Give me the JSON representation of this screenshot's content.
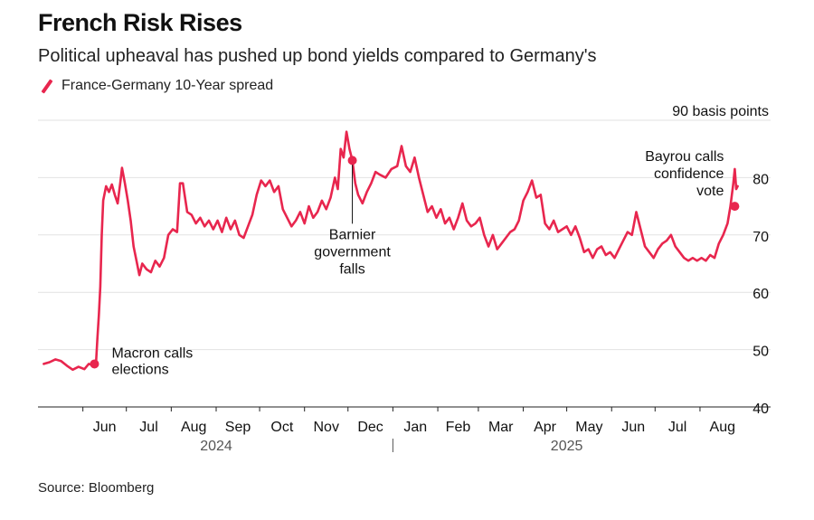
{
  "title": "French Risk Rises",
  "subtitle": "Political upheaval has pushed up bond yields compared to Germany's",
  "legend_label": "France-Germany 10-Year spread",
  "source": "Source: Bloomberg",
  "colors": {
    "series": "#e8264e",
    "grid": "#e2e2e2",
    "axis": "#222222"
  },
  "chart_data": {
    "type": "line",
    "title": "French Risk Rises",
    "subtitle": "Political upheaval has pushed up bond yields compared to Germany's",
    "unit_label": "90 basis points",
    "ylim": [
      40,
      90
    ],
    "yticks": [
      40,
      50,
      60,
      70,
      80
    ],
    "grid": "horizontal",
    "y_axis_side": "right",
    "xlim": [
      "2024-05-01",
      "2025-08-31"
    ],
    "month_ticks": [
      {
        "label": "Jun",
        "date": "2024-06-01"
      },
      {
        "label": "Jul",
        "date": "2024-07-01"
      },
      {
        "label": "Aug",
        "date": "2024-08-01"
      },
      {
        "label": "Sep",
        "date": "2024-09-01"
      },
      {
        "label": "Oct",
        "date": "2024-10-01"
      },
      {
        "label": "Nov",
        "date": "2024-11-01"
      },
      {
        "label": "Dec",
        "date": "2024-12-01"
      },
      {
        "label": "Jan",
        "date": "2025-01-01"
      },
      {
        "label": "Feb",
        "date": "2025-02-01"
      },
      {
        "label": "Mar",
        "date": "2025-03-01"
      },
      {
        "label": "Apr",
        "date": "2025-04-01"
      },
      {
        "label": "May",
        "date": "2025-05-01"
      },
      {
        "label": "Jun",
        "date": "2025-06-01"
      },
      {
        "label": "Jul",
        "date": "2025-07-01"
      },
      {
        "label": "Aug",
        "date": "2025-08-01"
      }
    ],
    "years": [
      {
        "label": "2024",
        "date": "2024-09-01"
      },
      {
        "label": "2025",
        "date": "2025-05-01"
      }
    ],
    "year_divider": "2025-01-01",
    "series": [
      {
        "name": "France-Germany 10-Year spread",
        "points": [
          [
            "2024-05-05",
            47.5
          ],
          [
            "2024-05-09",
            47.8
          ],
          [
            "2024-05-13",
            48.3
          ],
          [
            "2024-05-17",
            48.0
          ],
          [
            "2024-05-21",
            47.2
          ],
          [
            "2024-05-25",
            46.5
          ],
          [
            "2024-05-29",
            47.0
          ],
          [
            "2024-06-02",
            46.6
          ],
          [
            "2024-06-05",
            47.5
          ],
          [
            "2024-06-08",
            47.3
          ],
          [
            "2024-06-10",
            47.5
          ],
          [
            "2024-06-11",
            52.0
          ],
          [
            "2024-06-12",
            56.0
          ],
          [
            "2024-06-13",
            61.0
          ],
          [
            "2024-06-14",
            70.0
          ],
          [
            "2024-06-15",
            76.0
          ],
          [
            "2024-06-17",
            78.5
          ],
          [
            "2024-06-19",
            77.5
          ],
          [
            "2024-06-21",
            78.8
          ],
          [
            "2024-06-23",
            77.0
          ],
          [
            "2024-06-25",
            75.5
          ],
          [
            "2024-06-27",
            79.5
          ],
          [
            "2024-06-28",
            81.7
          ],
          [
            "2024-06-30",
            79.0
          ],
          [
            "2024-07-02",
            76.0
          ],
          [
            "2024-07-04",
            72.5
          ],
          [
            "2024-07-06",
            68.0
          ],
          [
            "2024-07-08",
            65.5
          ],
          [
            "2024-07-10",
            63.0
          ],
          [
            "2024-07-12",
            65.0
          ],
          [
            "2024-07-15",
            64.0
          ],
          [
            "2024-07-18",
            63.5
          ],
          [
            "2024-07-21",
            65.5
          ],
          [
            "2024-07-24",
            64.5
          ],
          [
            "2024-07-27",
            66.0
          ],
          [
            "2024-07-30",
            70.0
          ],
          [
            "2024-08-02",
            71.0
          ],
          [
            "2024-08-05",
            70.5
          ],
          [
            "2024-08-07",
            79.0
          ],
          [
            "2024-08-09",
            79.0
          ],
          [
            "2024-08-12",
            74.0
          ],
          [
            "2024-08-15",
            73.5
          ],
          [
            "2024-08-18",
            72.0
          ],
          [
            "2024-08-21",
            73.0
          ],
          [
            "2024-08-24",
            71.5
          ],
          [
            "2024-08-27",
            72.5
          ],
          [
            "2024-08-30",
            71.0
          ],
          [
            "2024-09-02",
            72.5
          ],
          [
            "2024-09-05",
            70.5
          ],
          [
            "2024-09-08",
            73.0
          ],
          [
            "2024-09-11",
            71.0
          ],
          [
            "2024-09-14",
            72.5
          ],
          [
            "2024-09-17",
            70.0
          ],
          [
            "2024-09-20",
            69.5
          ],
          [
            "2024-09-23",
            71.5
          ],
          [
            "2024-09-26",
            73.5
          ],
          [
            "2024-09-29",
            77.0
          ],
          [
            "2024-10-02",
            79.5
          ],
          [
            "2024-10-05",
            78.5
          ],
          [
            "2024-10-08",
            79.5
          ],
          [
            "2024-10-11",
            77.5
          ],
          [
            "2024-10-14",
            78.5
          ],
          [
            "2024-10-17",
            74.5
          ],
          [
            "2024-10-20",
            73.0
          ],
          [
            "2024-10-23",
            71.5
          ],
          [
            "2024-10-26",
            72.5
          ],
          [
            "2024-10-29",
            74.0
          ],
          [
            "2024-11-01",
            72.0
          ],
          [
            "2024-11-04",
            75.0
          ],
          [
            "2024-11-07",
            73.0
          ],
          [
            "2024-11-10",
            74.0
          ],
          [
            "2024-11-13",
            76.0
          ],
          [
            "2024-11-16",
            74.5
          ],
          [
            "2024-11-19",
            76.5
          ],
          [
            "2024-11-22",
            80.0
          ],
          [
            "2024-11-24",
            78.0
          ],
          [
            "2024-11-26",
            85.0
          ],
          [
            "2024-11-28",
            83.5
          ],
          [
            "2024-11-30",
            88.0
          ],
          [
            "2024-12-02",
            85.0
          ],
          [
            "2024-12-04",
            83.0
          ],
          [
            "2024-12-06",
            79.0
          ],
          [
            "2024-12-08",
            77.0
          ],
          [
            "2024-12-11",
            75.5
          ],
          [
            "2024-12-14",
            77.5
          ],
          [
            "2024-12-17",
            79.0
          ],
          [
            "2024-12-20",
            81.0
          ],
          [
            "2024-12-23",
            80.5
          ],
          [
            "2024-12-27",
            80.0
          ],
          [
            "2024-12-31",
            81.5
          ],
          [
            "2025-01-04",
            82.0
          ],
          [
            "2025-01-07",
            85.5
          ],
          [
            "2025-01-10",
            82.0
          ],
          [
            "2025-01-13",
            81.0
          ],
          [
            "2025-01-16",
            83.5
          ],
          [
            "2025-01-19",
            80.0
          ],
          [
            "2025-01-22",
            77.0
          ],
          [
            "2025-01-25",
            74.0
          ],
          [
            "2025-01-28",
            75.0
          ],
          [
            "2025-01-31",
            73.0
          ],
          [
            "2025-02-03",
            74.5
          ],
          [
            "2025-02-06",
            72.0
          ],
          [
            "2025-02-09",
            73.0
          ],
          [
            "2025-02-12",
            71.0
          ],
          [
            "2025-02-15",
            73.0
          ],
          [
            "2025-02-18",
            75.5
          ],
          [
            "2025-02-21",
            72.5
          ],
          [
            "2025-02-24",
            71.5
          ],
          [
            "2025-02-27",
            72.0
          ],
          [
            "2025-03-02",
            73.0
          ],
          [
            "2025-03-05",
            70.0
          ],
          [
            "2025-03-08",
            68.0
          ],
          [
            "2025-03-11",
            70.0
          ],
          [
            "2025-03-14",
            67.5
          ],
          [
            "2025-03-17",
            68.5
          ],
          [
            "2025-03-20",
            69.5
          ],
          [
            "2025-03-23",
            70.5
          ],
          [
            "2025-03-26",
            71.0
          ],
          [
            "2025-03-29",
            72.5
          ],
          [
            "2025-04-01",
            76.0
          ],
          [
            "2025-04-04",
            77.5
          ],
          [
            "2025-04-07",
            79.5
          ],
          [
            "2025-04-10",
            76.5
          ],
          [
            "2025-04-13",
            77.0
          ],
          [
            "2025-04-16",
            72.0
          ],
          [
            "2025-04-19",
            71.0
          ],
          [
            "2025-04-22",
            72.5
          ],
          [
            "2025-04-25",
            70.5
          ],
          [
            "2025-04-28",
            71.0
          ],
          [
            "2025-05-01",
            71.5
          ],
          [
            "2025-05-04",
            70.0
          ],
          [
            "2025-05-07",
            71.5
          ],
          [
            "2025-05-10",
            69.5
          ],
          [
            "2025-05-13",
            67.0
          ],
          [
            "2025-05-16",
            67.5
          ],
          [
            "2025-05-19",
            66.0
          ],
          [
            "2025-05-22",
            67.5
          ],
          [
            "2025-05-25",
            68.0
          ],
          [
            "2025-05-28",
            66.5
          ],
          [
            "2025-05-31",
            67.0
          ],
          [
            "2025-06-03",
            66.0
          ],
          [
            "2025-06-06",
            67.5
          ],
          [
            "2025-06-09",
            69.0
          ],
          [
            "2025-06-12",
            70.5
          ],
          [
            "2025-06-15",
            70.0
          ],
          [
            "2025-06-18",
            74.0
          ],
          [
            "2025-06-21",
            71.0
          ],
          [
            "2025-06-24",
            68.0
          ],
          [
            "2025-06-27",
            67.0
          ],
          [
            "2025-06-30",
            66.0
          ],
          [
            "2025-07-03",
            67.5
          ],
          [
            "2025-07-06",
            68.5
          ],
          [
            "2025-07-09",
            69.0
          ],
          [
            "2025-07-12",
            70.0
          ],
          [
            "2025-07-15",
            68.0
          ],
          [
            "2025-07-18",
            67.0
          ],
          [
            "2025-07-21",
            66.0
          ],
          [
            "2025-07-24",
            65.5
          ],
          [
            "2025-07-27",
            66.0
          ],
          [
            "2025-07-30",
            65.5
          ],
          [
            "2025-08-02",
            66.0
          ],
          [
            "2025-08-05",
            65.5
          ],
          [
            "2025-08-08",
            66.5
          ],
          [
            "2025-08-11",
            66.0
          ],
          [
            "2025-08-14",
            68.5
          ],
          [
            "2025-08-17",
            70.0
          ],
          [
            "2025-08-20",
            72.0
          ],
          [
            "2025-08-22",
            75.0
          ],
          [
            "2025-08-24",
            79.0
          ],
          [
            "2025-08-25",
            81.5
          ],
          [
            "2025-08-26",
            78.0
          ],
          [
            "2025-08-27",
            78.5
          ]
        ]
      }
    ],
    "annotations": [
      {
        "lines": [
          "Macron calls",
          "elections"
        ],
        "date": "2024-06-09",
        "value": 47.5,
        "side": "right"
      },
      {
        "lines": [
          "Barnier",
          "government",
          "falls"
        ],
        "date": "2024-12-04",
        "value": 83.0,
        "side": "below"
      },
      {
        "lines": [
          "Bayrou calls",
          "confidence",
          "vote"
        ],
        "date": "2025-08-25",
        "value": 75.0,
        "side": "above-left"
      }
    ]
  }
}
